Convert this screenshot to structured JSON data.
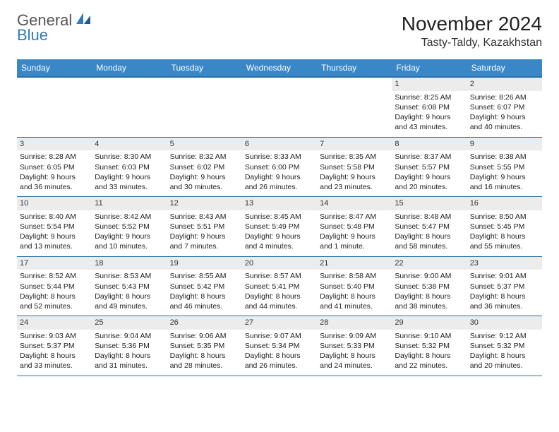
{
  "brand": {
    "line1": "General",
    "line2": "Blue"
  },
  "title": "November 2024",
  "location": "Tasty-Taldy, Kazakhstan",
  "colors": {
    "header_bg": "#3a87c7",
    "header_border": "#2a6ea8",
    "daynum_bg": "#ececec",
    "text": "#222222",
    "brand_gray": "#555555",
    "brand_blue": "#2f7bbf"
  },
  "weekdays": [
    "Sunday",
    "Monday",
    "Tuesday",
    "Wednesday",
    "Thursday",
    "Friday",
    "Saturday"
  ],
  "weeks": [
    [
      null,
      null,
      null,
      null,
      null,
      {
        "n": "1",
        "sr": "Sunrise: 8:25 AM",
        "ss": "Sunset: 6:08 PM",
        "dl": "Daylight: 9 hours and 43 minutes."
      },
      {
        "n": "2",
        "sr": "Sunrise: 8:26 AM",
        "ss": "Sunset: 6:07 PM",
        "dl": "Daylight: 9 hours and 40 minutes."
      }
    ],
    [
      {
        "n": "3",
        "sr": "Sunrise: 8:28 AM",
        "ss": "Sunset: 6:05 PM",
        "dl": "Daylight: 9 hours and 36 minutes."
      },
      {
        "n": "4",
        "sr": "Sunrise: 8:30 AM",
        "ss": "Sunset: 6:03 PM",
        "dl": "Daylight: 9 hours and 33 minutes."
      },
      {
        "n": "5",
        "sr": "Sunrise: 8:32 AM",
        "ss": "Sunset: 6:02 PM",
        "dl": "Daylight: 9 hours and 30 minutes."
      },
      {
        "n": "6",
        "sr": "Sunrise: 8:33 AM",
        "ss": "Sunset: 6:00 PM",
        "dl": "Daylight: 9 hours and 26 minutes."
      },
      {
        "n": "7",
        "sr": "Sunrise: 8:35 AM",
        "ss": "Sunset: 5:58 PM",
        "dl": "Daylight: 9 hours and 23 minutes."
      },
      {
        "n": "8",
        "sr": "Sunrise: 8:37 AM",
        "ss": "Sunset: 5:57 PM",
        "dl": "Daylight: 9 hours and 20 minutes."
      },
      {
        "n": "9",
        "sr": "Sunrise: 8:38 AM",
        "ss": "Sunset: 5:55 PM",
        "dl": "Daylight: 9 hours and 16 minutes."
      }
    ],
    [
      {
        "n": "10",
        "sr": "Sunrise: 8:40 AM",
        "ss": "Sunset: 5:54 PM",
        "dl": "Daylight: 9 hours and 13 minutes."
      },
      {
        "n": "11",
        "sr": "Sunrise: 8:42 AM",
        "ss": "Sunset: 5:52 PM",
        "dl": "Daylight: 9 hours and 10 minutes."
      },
      {
        "n": "12",
        "sr": "Sunrise: 8:43 AM",
        "ss": "Sunset: 5:51 PM",
        "dl": "Daylight: 9 hours and 7 minutes."
      },
      {
        "n": "13",
        "sr": "Sunrise: 8:45 AM",
        "ss": "Sunset: 5:49 PM",
        "dl": "Daylight: 9 hours and 4 minutes."
      },
      {
        "n": "14",
        "sr": "Sunrise: 8:47 AM",
        "ss": "Sunset: 5:48 PM",
        "dl": "Daylight: 9 hours and 1 minute."
      },
      {
        "n": "15",
        "sr": "Sunrise: 8:48 AM",
        "ss": "Sunset: 5:47 PM",
        "dl": "Daylight: 8 hours and 58 minutes."
      },
      {
        "n": "16",
        "sr": "Sunrise: 8:50 AM",
        "ss": "Sunset: 5:45 PM",
        "dl": "Daylight: 8 hours and 55 minutes."
      }
    ],
    [
      {
        "n": "17",
        "sr": "Sunrise: 8:52 AM",
        "ss": "Sunset: 5:44 PM",
        "dl": "Daylight: 8 hours and 52 minutes."
      },
      {
        "n": "18",
        "sr": "Sunrise: 8:53 AM",
        "ss": "Sunset: 5:43 PM",
        "dl": "Daylight: 8 hours and 49 minutes."
      },
      {
        "n": "19",
        "sr": "Sunrise: 8:55 AM",
        "ss": "Sunset: 5:42 PM",
        "dl": "Daylight: 8 hours and 46 minutes."
      },
      {
        "n": "20",
        "sr": "Sunrise: 8:57 AM",
        "ss": "Sunset: 5:41 PM",
        "dl": "Daylight: 8 hours and 44 minutes."
      },
      {
        "n": "21",
        "sr": "Sunrise: 8:58 AM",
        "ss": "Sunset: 5:40 PM",
        "dl": "Daylight: 8 hours and 41 minutes."
      },
      {
        "n": "22",
        "sr": "Sunrise: 9:00 AM",
        "ss": "Sunset: 5:38 PM",
        "dl": "Daylight: 8 hours and 38 minutes."
      },
      {
        "n": "23",
        "sr": "Sunrise: 9:01 AM",
        "ss": "Sunset: 5:37 PM",
        "dl": "Daylight: 8 hours and 36 minutes."
      }
    ],
    [
      {
        "n": "24",
        "sr": "Sunrise: 9:03 AM",
        "ss": "Sunset: 5:37 PM",
        "dl": "Daylight: 8 hours and 33 minutes."
      },
      {
        "n": "25",
        "sr": "Sunrise: 9:04 AM",
        "ss": "Sunset: 5:36 PM",
        "dl": "Daylight: 8 hours and 31 minutes."
      },
      {
        "n": "26",
        "sr": "Sunrise: 9:06 AM",
        "ss": "Sunset: 5:35 PM",
        "dl": "Daylight: 8 hours and 28 minutes."
      },
      {
        "n": "27",
        "sr": "Sunrise: 9:07 AM",
        "ss": "Sunset: 5:34 PM",
        "dl": "Daylight: 8 hours and 26 minutes."
      },
      {
        "n": "28",
        "sr": "Sunrise: 9:09 AM",
        "ss": "Sunset: 5:33 PM",
        "dl": "Daylight: 8 hours and 24 minutes."
      },
      {
        "n": "29",
        "sr": "Sunrise: 9:10 AM",
        "ss": "Sunset: 5:32 PM",
        "dl": "Daylight: 8 hours and 22 minutes."
      },
      {
        "n": "30",
        "sr": "Sunrise: 9:12 AM",
        "ss": "Sunset: 5:32 PM",
        "dl": "Daylight: 8 hours and 20 minutes."
      }
    ]
  ]
}
